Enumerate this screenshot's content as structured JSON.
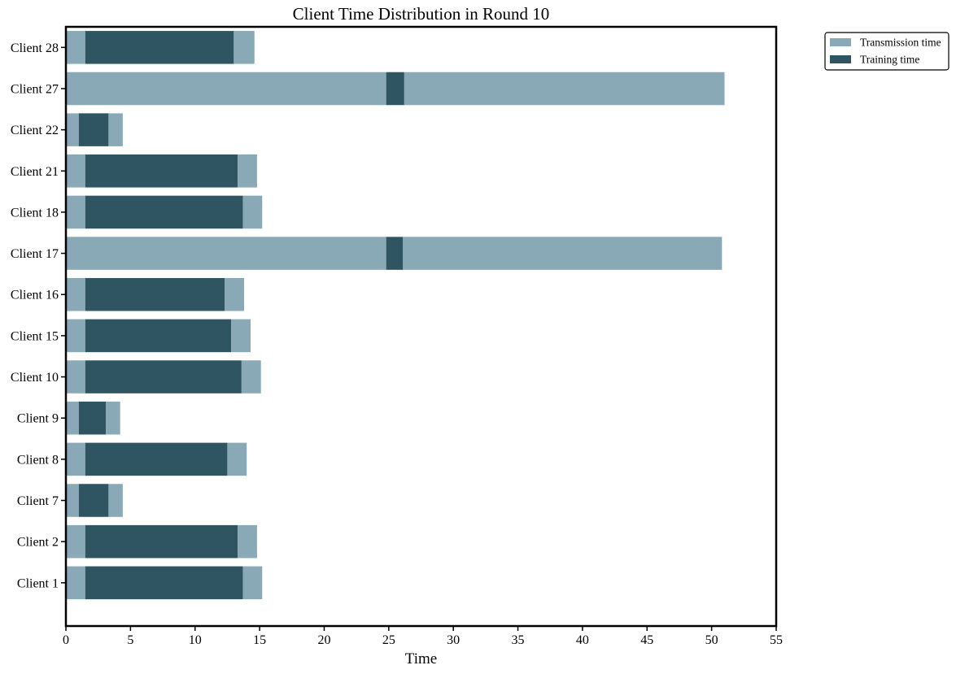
{
  "chart_data": {
    "type": "bar",
    "orientation": "horizontal",
    "stacked": true,
    "title": "Client Time Distribution in Round 10",
    "xlabel": "Time",
    "ylabel": "",
    "xlim": [
      0,
      55
    ],
    "xticks": [
      0,
      5,
      10,
      15,
      20,
      25,
      30,
      35,
      40,
      45,
      50,
      55
    ],
    "categories": [
      "Client 1",
      "Client 2",
      "Client 7",
      "Client 8",
      "Client 9",
      "Client 10",
      "Client 15",
      "Client 16",
      "Client 17",
      "Client 18",
      "Client 21",
      "Client 22",
      "Client 27",
      "Client 28"
    ],
    "series": [
      {
        "name": "Transmission time",
        "color": "#88a9b5",
        "role": "pre",
        "values": [
          1.5,
          1.5,
          1.0,
          1.5,
          1.0,
          1.5,
          1.5,
          1.5,
          24.8,
          1.5,
          1.5,
          1.0,
          24.8,
          1.5
        ]
      },
      {
        "name": "Training time",
        "color": "#2e5561",
        "values": [
          12.2,
          11.8,
          2.3,
          11.0,
          2.1,
          12.1,
          11.3,
          10.8,
          1.3,
          12.2,
          11.8,
          2.3,
          1.4,
          11.5
        ]
      },
      {
        "name": "Transmission time",
        "color": "#88a9b5",
        "role": "post",
        "values": [
          1.5,
          1.5,
          1.1,
          1.5,
          1.1,
          1.5,
          1.5,
          1.5,
          24.7,
          1.5,
          1.5,
          1.1,
          24.8,
          1.6
        ]
      }
    ],
    "legend": {
      "placement": "outside-top-right",
      "entries": [
        {
          "label": "Transmission time",
          "color": "#88a9b5"
        },
        {
          "label": "Training time",
          "color": "#2e5561"
        }
      ]
    },
    "grid": false
  }
}
